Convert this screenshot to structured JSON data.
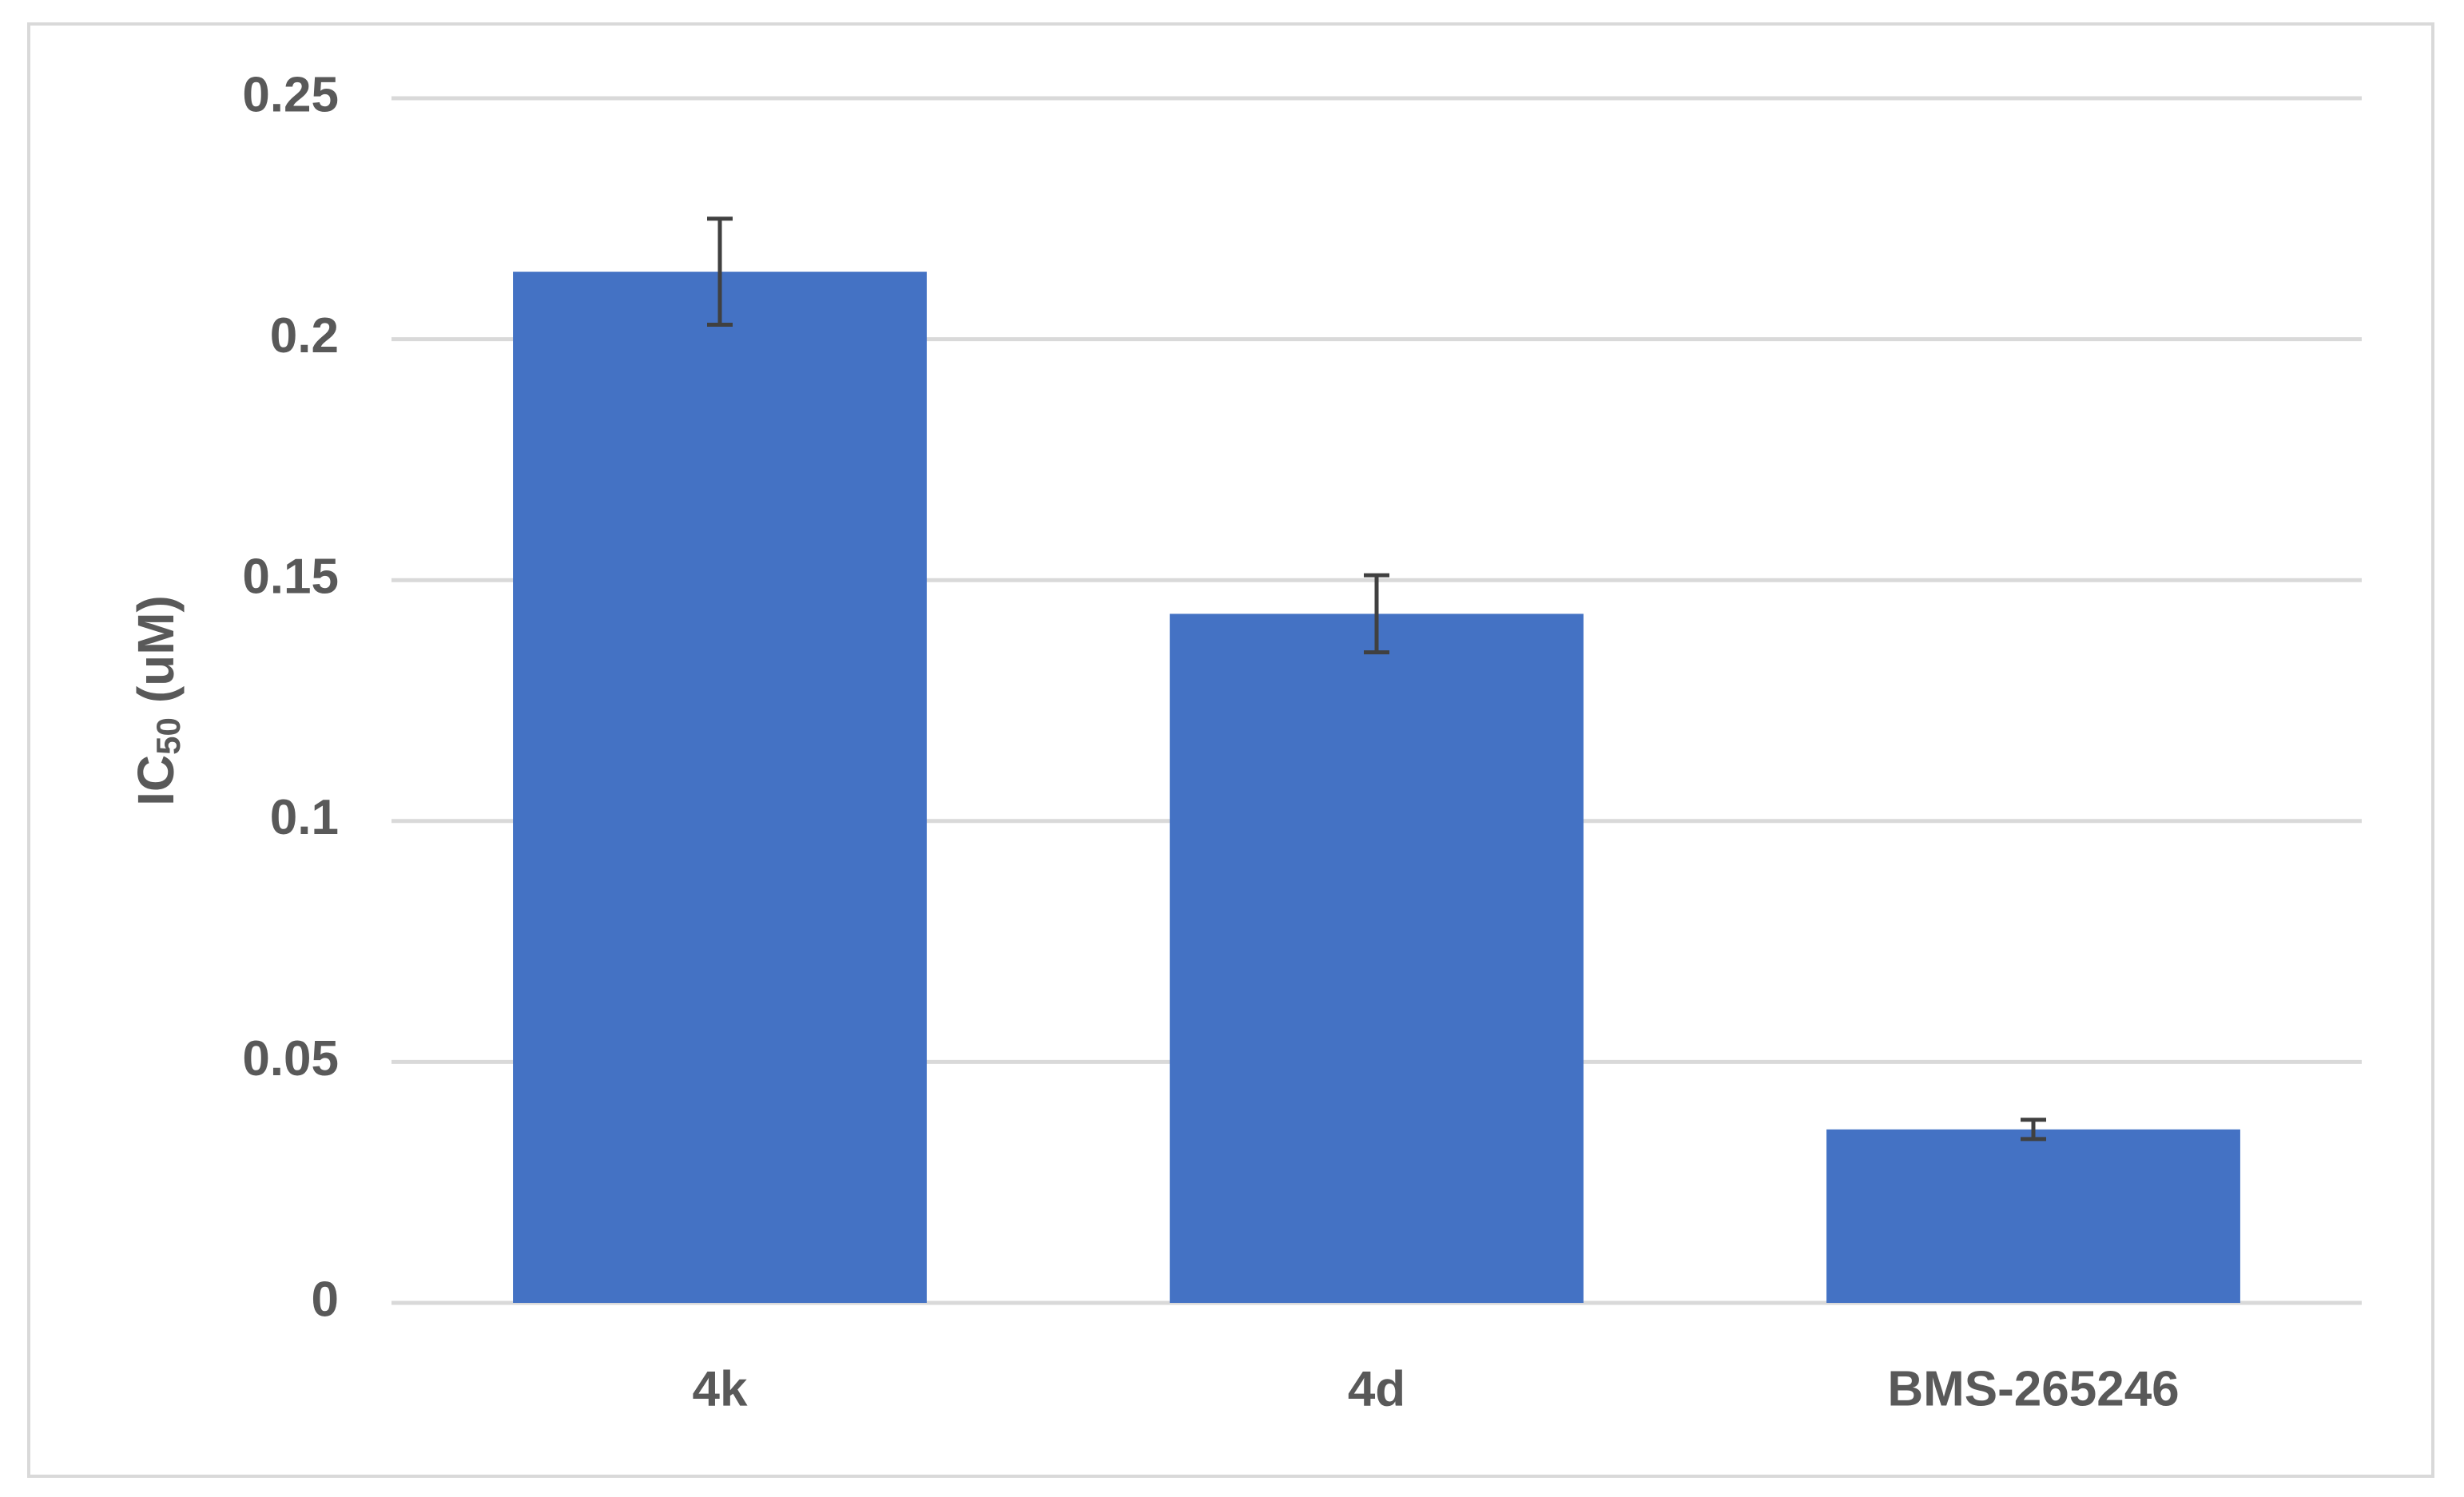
{
  "chart_data": {
    "type": "bar",
    "y_label": [
      "IC",
      "50",
      "(uM)"
    ],
    "categories": [
      "4k",
      "4d",
      "BMS-265246"
    ],
    "values": [
      0.214,
      0.143,
      0.036
    ],
    "errors": [
      0.011,
      0.008,
      0.002
    ],
    "color": "#4472c4",
    "error_color": "#404040",
    "ylim": [
      0,
      0.25
    ],
    "yticks": [
      0,
      0.05,
      0.1,
      0.15,
      0.2,
      0.25
    ],
    "grid": true
  }
}
